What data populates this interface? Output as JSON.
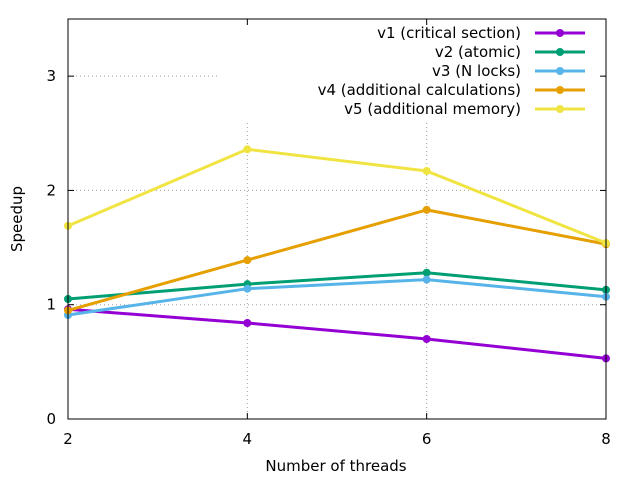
{
  "chart_data": {
    "type": "line",
    "title": "",
    "xlabel": "Number of threads",
    "ylabel": "Speedup",
    "xlim": [
      2,
      8
    ],
    "ylim": [
      0,
      3.5
    ],
    "x_ticks": [
      2,
      4,
      6,
      8
    ],
    "y_ticks": [
      0,
      1,
      2,
      3
    ],
    "grid": true,
    "legend_position": "top-right",
    "x": [
      2,
      4,
      6,
      8
    ],
    "series": [
      {
        "name": "v1 (critical section)",
        "color": "#9400d3",
        "values": [
          0.96,
          0.84,
          0.7,
          0.53
        ]
      },
      {
        "name": "v2 (atomic)",
        "color": "#009e73",
        "values": [
          1.05,
          1.18,
          1.28,
          1.13
        ]
      },
      {
        "name": "v3 (N locks)",
        "color": "#56b4e9",
        "values": [
          0.91,
          1.14,
          1.22,
          1.07
        ]
      },
      {
        "name": "v4 (additional calculations)",
        "color": "#e69f00",
        "values": [
          0.95,
          1.39,
          1.83,
          1.53
        ]
      },
      {
        "name": "v5 (additional memory)",
        "color": "#f0e442",
        "values": [
          1.69,
          2.36,
          2.17,
          1.54
        ]
      }
    ]
  }
}
